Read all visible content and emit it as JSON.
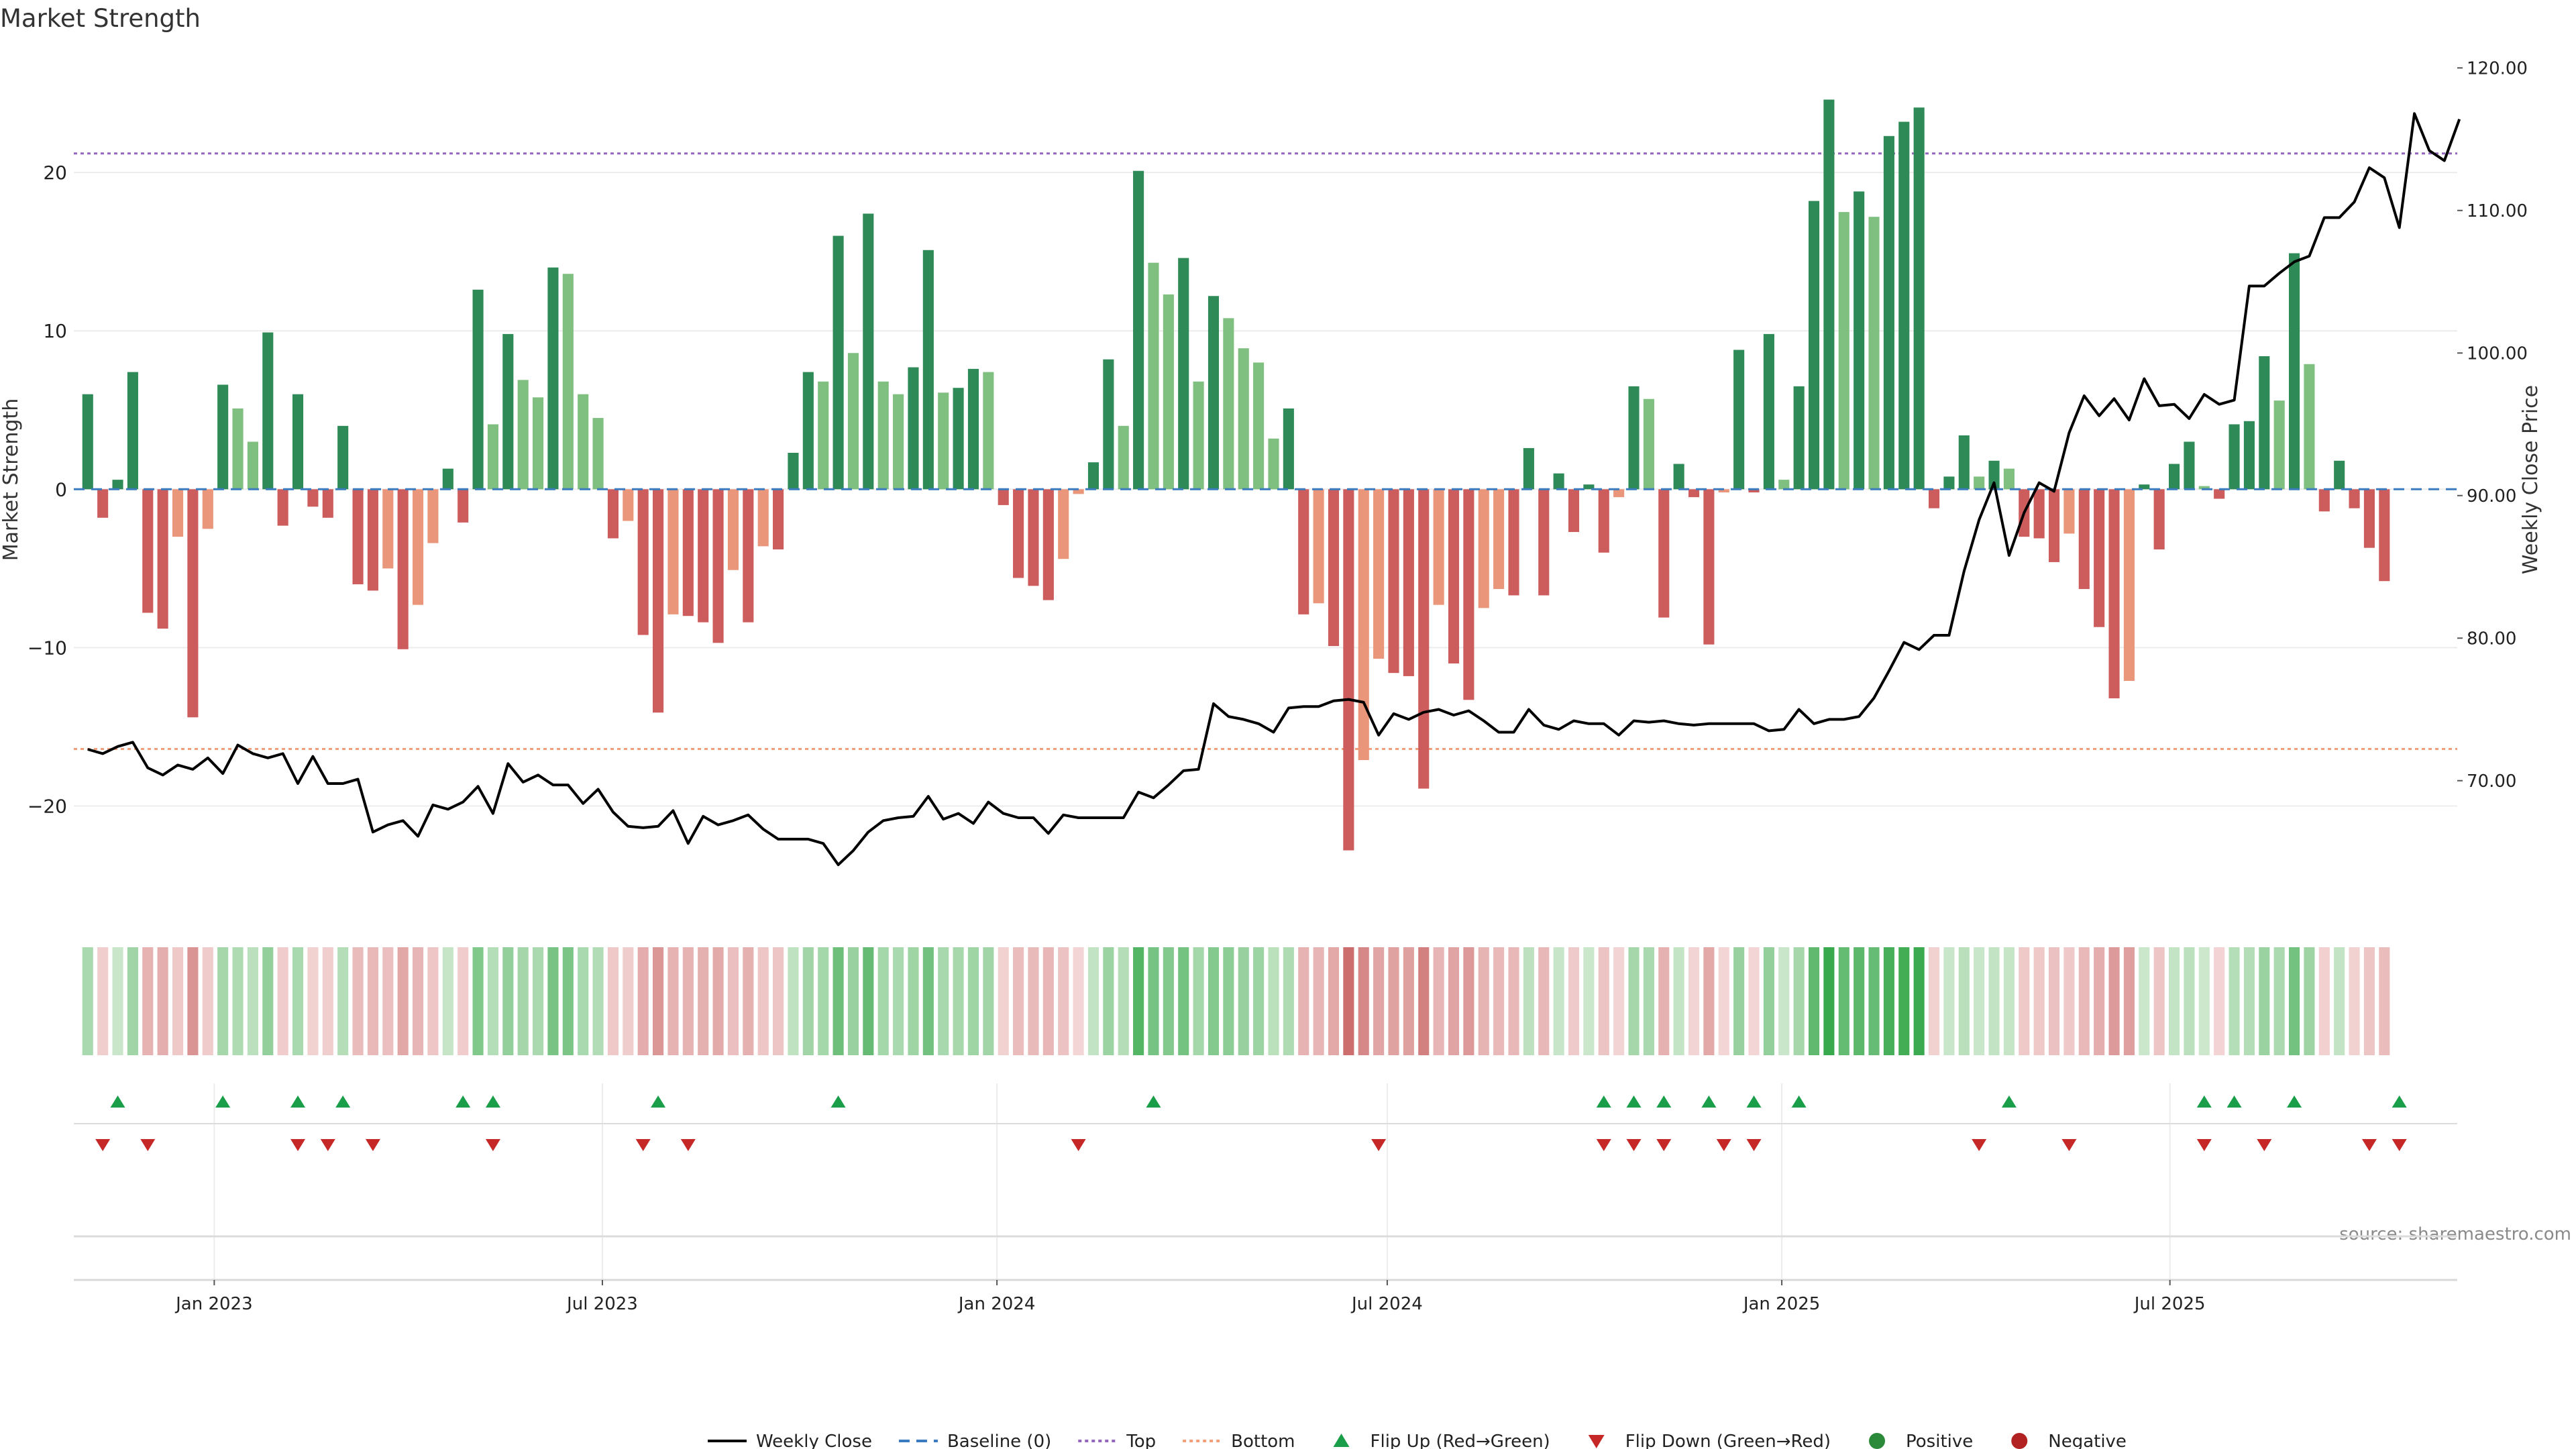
{
  "chart_data": {
    "type": "bar",
    "title": "Market Strength",
    "ylabel": "Market Strength",
    "y2label": "Weekly Close Price",
    "ylim": [
      -26.5,
      27.5
    ],
    "y2lim": [
      61,
      121
    ],
    "yticks": [
      -20,
      -10,
      0,
      10,
      20
    ],
    "y2ticks": [
      "70.00",
      "80.00",
      "90.00",
      "100.00",
      "110.00",
      "120.00"
    ],
    "x_start_days": 0,
    "x_step_days": 7,
    "x_axis_days": [
      -6.5,
      1105
    ],
    "xticks": [
      {
        "label": "Jan 2023",
        "days": 59
      },
      {
        "label": "Jul 2023",
        "days": 240
      },
      {
        "label": "Jan 2024",
        "days": 424
      },
      {
        "label": "Jul 2024",
        "days": 606
      },
      {
        "label": "Jan 2025",
        "days": 790
      },
      {
        "label": "Jul 2025",
        "days": 971
      }
    ],
    "top_line": 21.2,
    "bottom_line": -16.4,
    "strength": [
      6,
      -1.8,
      0.6,
      7.4,
      -7.8,
      -8.8,
      -3,
      -14.4,
      -2.5,
      6.6,
      5.1,
      3,
      9.9,
      -2.3,
      6,
      -1.1,
      -1.8,
      4,
      -6,
      -6.4,
      -5,
      -10.1,
      -7.3,
      -3.4,
      1.3,
      -2.1,
      12.6,
      4.1,
      9.8,
      6.9,
      5.8,
      14,
      13.6,
      6,
      4.5,
      -3.1,
      -2,
      -9.2,
      -14.1,
      -7.9,
      -8,
      -8.4,
      -9.7,
      -5.1,
      -8.4,
      -3.6,
      -3.8,
      2.3,
      7.4,
      6.8,
      16,
      8.6,
      17.4,
      6.8,
      6,
      7.7,
      15.1,
      6.1,
      6.4,
      7.6,
      7.4,
      -1,
      -5.6,
      -6.1,
      -7,
      -4.4,
      -0.3,
      1.7,
      8.2,
      4,
      20.1,
      14.3,
      12.3,
      14.6,
      6.8,
      12.2,
      10.8,
      8.9,
      8,
      3.2,
      5.1,
      -7.9,
      -7.2,
      -9.9,
      -22.8,
      -17.1,
      -10.7,
      -11.6,
      -11.8,
      -18.9,
      -7.3,
      -11,
      -13.3,
      -7.5,
      -6.3,
      -6.7,
      2.6,
      -6.7,
      1,
      -2.7,
      0.3,
      -4,
      -0.5,
      6.5,
      5.7,
      -8.1,
      1.6,
      -0.5,
      -9.8,
      -0.2,
      8.8,
      -0.2,
      9.8,
      0.6,
      6.5,
      18.2,
      24.6,
      17.5,
      18.8,
      17.2,
      22.3,
      23.2,
      24.1,
      -1.2,
      0.8,
      3.4,
      0.8,
      1.8,
      1.3,
      -3,
      -3.1,
      -4.6,
      -2.8,
      -6.3,
      -8.7,
      -13.2,
      -12.1,
      0.3,
      -3.8,
      1.6,
      3,
      0.2,
      -0.6,
      4.1,
      4.3,
      8.4,
      5.6,
      14.9,
      7.9,
      -1.4,
      1.8,
      -1.2,
      -3.7,
      -5.8
    ],
    "price": [
      72.2,
      71.9,
      72.4,
      72.7,
      70.9,
      70.4,
      71.1,
      70.8,
      71.6,
      70.5,
      72.5,
      71.9,
      71.6,
      71.9,
      69.8,
      71.7,
      69.8,
      69.8,
      70.1,
      66.4,
      66.9,
      67.2,
      66.1,
      68.3,
      68.0,
      68.5,
      69.6,
      67.7,
      71.2,
      69.9,
      70.4,
      69.7,
      69.7,
      68.4,
      69.4,
      67.8,
      66.8,
      66.7,
      66.8,
      67.9,
      65.6,
      67.5,
      66.9,
      67.2,
      67.6,
      66.6,
      65.9,
      65.9,
      65.9,
      65.6,
      64.1,
      65.1,
      66.4,
      67.2,
      67.4,
      67.5,
      68.9,
      67.3,
      67.7,
      67.0,
      68.5,
      67.7,
      67.4,
      67.4,
      66.3,
      67.6,
      67.4,
      67.4,
      67.4,
      67.4,
      69.2,
      68.8,
      69.7,
      70.7,
      70.8,
      75.4,
      74.5,
      74.3,
      74.0,
      73.4,
      75.1,
      75.2,
      75.2,
      75.6,
      75.7,
      75.5,
      73.2,
      74.7,
      74.3,
      74.8,
      75.0,
      74.6,
      74.9,
      74.2,
      73.4,
      73.4,
      75.0,
      73.9,
      73.6,
      74.2,
      74.0,
      74.0,
      73.2,
      74.2,
      74.1,
      74.2,
      74.0,
      73.9,
      74.0,
      74.0,
      74.0,
      74.0,
      73.5,
      73.6,
      75.0,
      74.0,
      74.3,
      74.3,
      74.5,
      75.8,
      77.7,
      79.7,
      79.2,
      80.2,
      80.2,
      84.7,
      88.3,
      90.9,
      85.8,
      88.8,
      90.9,
      90.3,
      94.4,
      97.0,
      95.6,
      96.8,
      95.3,
      98.2,
      96.3,
      96.4,
      95.4,
      97.1,
      96.4,
      96.7,
      104.7,
      104.7,
      105.6,
      106.4,
      106.8,
      109.5,
      109.5,
      110.6,
      113.0,
      112.3,
      108.8,
      116.8,
      114.2,
      113.5,
      116.4
    ],
    "flip_up_idx": [
      2,
      9,
      14,
      17,
      25,
      27,
      38,
      50,
      71,
      101,
      103,
      105,
      108,
      111,
      114,
      128,
      141,
      143,
      147,
      154
    ],
    "flip_down_idx": [
      1,
      4,
      14,
      16,
      19,
      27,
      37,
      40,
      66,
      86,
      101,
      103,
      105,
      109,
      111,
      126,
      132,
      141,
      145,
      152,
      154
    ],
    "legend": [
      {
        "label": "Weekly Close",
        "kind": "line",
        "color": "#000000"
      },
      {
        "label": "Baseline (0)",
        "kind": "dash",
        "color": "#3b7bbf"
      },
      {
        "label": "Top",
        "kind": "dot",
        "color": "#9467bd"
      },
      {
        "label": "Bottom",
        "kind": "dot",
        "color": "#f2a07b"
      },
      {
        "label": "Flip Up (Red→Green)",
        "kind": "tri-up",
        "color": "#1a9e4a"
      },
      {
        "label": "Flip Down (Green→Red)",
        "kind": "tri-down",
        "color": "#c62828"
      },
      {
        "label": "Positive",
        "kind": "circle",
        "color": "#2a8a3a"
      },
      {
        "label": "Negative",
        "kind": "circle",
        "color": "#b22222"
      }
    ],
    "source": "source: sharemaestro.com"
  }
}
